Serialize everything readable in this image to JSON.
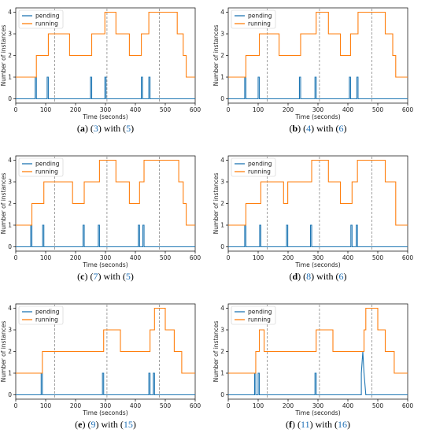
{
  "figure": {
    "xlabel": "Time (seconds)",
    "ylabel": "Number of instances",
    "xticks": [
      0,
      100,
      200,
      300,
      400,
      500,
      600
    ],
    "yticks": [
      0,
      1,
      2,
      3,
      4
    ],
    "xlim": [
      0,
      600
    ],
    "ylim": [
      -0.2,
      4.2
    ],
    "vlines": [
      130,
      305,
      480
    ],
    "colors": {
      "pending": "#1f77b4",
      "running": "#ff7f0e",
      "vline": "#888888",
      "axis": "#000000",
      "caption_ref": "#1f6fb5"
    }
  },
  "chart_data": [
    {
      "type": "line",
      "caption": {
        "letter": "a",
        "ref1": "3",
        "mid": " with ",
        "ref2": "5"
      },
      "series": [
        {
          "name": "pending",
          "x": [
            0,
            65,
            65,
            69,
            69,
            105,
            105,
            109,
            109,
            250,
            250,
            254,
            254,
            298,
            298,
            302,
            302,
            420,
            420,
            424,
            424,
            445,
            445,
            449,
            449,
            600
          ],
          "values": [
            0,
            0,
            1,
            1,
            0,
            0,
            1,
            1,
            0,
            0,
            1,
            1,
            0,
            0,
            1,
            1,
            0,
            0,
            1,
            1,
            0,
            0,
            1,
            1,
            0,
            0
          ]
        },
        {
          "name": "running",
          "x": [
            0,
            69,
            69,
            109,
            109,
            180,
            180,
            254,
            254,
            298,
            298,
            335,
            335,
            380,
            380,
            420,
            420,
            445,
            445,
            480,
            480,
            540,
            540,
            560,
            560,
            570,
            570,
            600
          ],
          "values": [
            1,
            1,
            2,
            2,
            3,
            3,
            2,
            2,
            3,
            3,
            4,
            4,
            3,
            3,
            2,
            2,
            3,
            3,
            4,
            4,
            4,
            4,
            3,
            3,
            2,
            2,
            1,
            1
          ]
        }
      ]
    },
    {
      "type": "line",
      "caption": {
        "letter": "b",
        "ref1": "4",
        "mid": " with ",
        "ref2": "6"
      },
      "series": [
        {
          "name": "pending",
          "x": [
            0,
            55,
            55,
            59,
            59,
            100,
            100,
            104,
            104,
            238,
            238,
            242,
            242,
            290,
            290,
            294,
            294,
            405,
            405,
            409,
            409,
            430,
            430,
            434,
            434,
            600
          ],
          "values": [
            0,
            0,
            1,
            1,
            0,
            0,
            1,
            1,
            0,
            0,
            1,
            1,
            0,
            0,
            1,
            1,
            0,
            0,
            1,
            1,
            0,
            0,
            1,
            1,
            0,
            0
          ]
        },
        {
          "name": "running",
          "x": [
            0,
            59,
            59,
            104,
            104,
            170,
            170,
            242,
            242,
            294,
            294,
            335,
            335,
            375,
            375,
            409,
            409,
            434,
            434,
            480,
            480,
            525,
            525,
            550,
            550,
            560,
            560,
            600
          ],
          "values": [
            1,
            1,
            2,
            2,
            3,
            3,
            2,
            2,
            3,
            3,
            4,
            4,
            3,
            3,
            2,
            2,
            3,
            3,
            4,
            4,
            4,
            4,
            3,
            3,
            2,
            2,
            1,
            1
          ]
        }
      ]
    },
    {
      "type": "line",
      "caption": {
        "letter": "c",
        "ref1": "7",
        "mid": " with ",
        "ref2": "5"
      },
      "series": [
        {
          "name": "pending",
          "x": [
            0,
            50,
            50,
            54,
            54,
            90,
            90,
            94,
            94,
            225,
            225,
            229,
            229,
            276,
            276,
            280,
            280,
            410,
            410,
            414,
            414,
            425,
            425,
            429,
            429,
            600
          ],
          "values": [
            0,
            0,
            1,
            1,
            0,
            0,
            1,
            1,
            0,
            0,
            1,
            1,
            0,
            0,
            1,
            1,
            0,
            0,
            1,
            1,
            0,
            0,
            1,
            1,
            0,
            0
          ]
        },
        {
          "name": "running",
          "x": [
            0,
            54,
            54,
            94,
            94,
            190,
            190,
            229,
            229,
            280,
            280,
            335,
            335,
            380,
            380,
            414,
            414,
            429,
            429,
            480,
            480,
            545,
            545,
            560,
            560,
            570,
            570,
            600
          ],
          "values": [
            1,
            1,
            2,
            2,
            3,
            3,
            2,
            2,
            3,
            3,
            4,
            4,
            3,
            3,
            2,
            2,
            3,
            3,
            4,
            4,
            4,
            4,
            3,
            3,
            2,
            2,
            1,
            1
          ]
        }
      ]
    },
    {
      "type": "line",
      "caption": {
        "letter": "d",
        "ref1": "8",
        "mid": " with ",
        "ref2": "6"
      },
      "series": [
        {
          "name": "pending",
          "x": [
            0,
            55,
            55,
            59,
            59,
            105,
            105,
            109,
            109,
            195,
            195,
            199,
            199,
            275,
            275,
            279,
            279,
            410,
            410,
            414,
            414,
            428,
            428,
            432,
            432,
            600
          ],
          "values": [
            0,
            0,
            1,
            1,
            0,
            0,
            1,
            1,
            0,
            0,
            1,
            1,
            0,
            0,
            1,
            1,
            0,
            0,
            1,
            1,
            0,
            0,
            1,
            1,
            0,
            0
          ]
        },
        {
          "name": "running",
          "x": [
            0,
            59,
            59,
            109,
            109,
            185,
            185,
            199,
            199,
            279,
            279,
            335,
            335,
            375,
            375,
            414,
            414,
            432,
            432,
            480,
            480,
            525,
            525,
            560,
            560,
            600
          ],
          "values": [
            1,
            1,
            2,
            2,
            3,
            3,
            2,
            2,
            3,
            3,
            4,
            4,
            3,
            3,
            2,
            2,
            3,
            3,
            4,
            4,
            4,
            4,
            3,
            3,
            1,
            1
          ]
        }
      ]
    },
    {
      "type": "line",
      "caption": {
        "letter": "e",
        "ref1": "9",
        "mid": " with ",
        "ref2": "15"
      },
      "series": [
        {
          "name": "pending",
          "x": [
            0,
            85,
            85,
            89,
            89,
            290,
            290,
            294,
            294,
            445,
            445,
            449,
            449,
            460,
            460,
            464,
            464,
            600
          ],
          "values": [
            0,
            0,
            1,
            1,
            0,
            0,
            1,
            1,
            0,
            0,
            1,
            1,
            0,
            0,
            1,
            1,
            0,
            0
          ]
        },
        {
          "name": "running",
          "x": [
            0,
            89,
            89,
            294,
            294,
            350,
            350,
            449,
            449,
            464,
            464,
            500,
            500,
            530,
            530,
            555,
            555,
            600
          ],
          "values": [
            1,
            1,
            2,
            2,
            3,
            3,
            2,
            2,
            3,
            3,
            4,
            4,
            3,
            3,
            2,
            2,
            1,
            1
          ]
        }
      ]
    },
    {
      "type": "line",
      "caption": {
        "letter": "f",
        "ref1": "11",
        "mid": " with ",
        "ref2": "16"
      },
      "series": [
        {
          "name": "pending",
          "x": [
            0,
            88,
            88,
            92,
            92,
            100,
            100,
            104,
            104,
            290,
            290,
            294,
            294,
            445,
            445,
            450,
            450,
            454,
            454,
            460,
            460,
            600
          ],
          "values": [
            0,
            0,
            1,
            1,
            0,
            0,
            1,
            1,
            0,
            0,
            1,
            1,
            0,
            0,
            1,
            2,
            2,
            1,
            1,
            0,
            0,
            0
          ]
        },
        {
          "name": "running",
          "x": [
            0,
            92,
            92,
            104,
            104,
            120,
            120,
            294,
            294,
            350,
            350,
            454,
            454,
            460,
            460,
            500,
            500,
            525,
            525,
            555,
            555,
            600
          ],
          "values": [
            1,
            1,
            2,
            2,
            3,
            3,
            2,
            2,
            3,
            3,
            2,
            2,
            3,
            3,
            4,
            4,
            3,
            3,
            2,
            2,
            1,
            1
          ]
        }
      ]
    }
  ]
}
